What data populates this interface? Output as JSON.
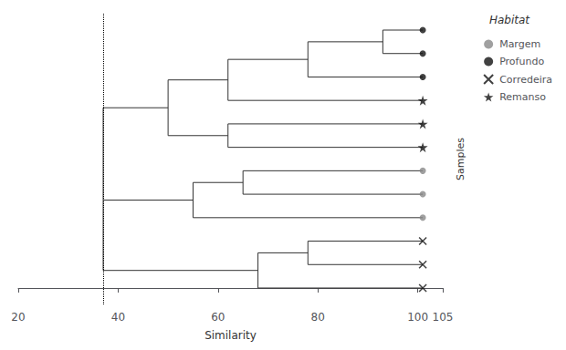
{
  "chart_data": {
    "type": "dendrogram",
    "xlabel": "Similarity",
    "ylabel": "Samples",
    "xlim": [
      20,
      105
    ],
    "xticks": [
      20,
      40,
      60,
      80,
      100
    ],
    "ylim": [
      -0.7,
      11.7
    ],
    "tick_labels": "x",
    "grid": false,
    "color": "#333333",
    "cut_line": {
      "x": 37,
      "color": "#000000",
      "line_style": "dotted"
    },
    "legend": "right",
    "legend_title": "Habitat",
    "series": [
      {
        "name": "Margem",
        "marker": "circle",
        "color": "#888888"
      },
      {
        "name": "Profundo",
        "marker": "circle",
        "color": "#111111"
      },
      {
        "name": "Corredeira",
        "marker": "x",
        "color": "#111111"
      },
      {
        "name": "Remanso",
        "marker": "star",
        "color": "#111111"
      }
    ],
    "leaves": [
      {
        "x": 101,
        "y": 11,
        "marker": "circle",
        "color": "#111111"
      },
      {
        "x": 101,
        "y": 10,
        "marker": "circle",
        "color": "#111111"
      },
      {
        "x": 101,
        "y": 9,
        "marker": "circle",
        "color": "#111111"
      },
      {
        "x": 101,
        "y": 8,
        "marker": "star",
        "color": "#111111"
      },
      {
        "x": 101,
        "y": 7,
        "marker": "star",
        "color": "#111111"
      },
      {
        "x": 101,
        "y": 6,
        "marker": "star",
        "color": "#111111"
      },
      {
        "x": 101,
        "y": 5,
        "marker": "circle",
        "color": "#888888"
      },
      {
        "x": 101,
        "y": 4,
        "marker": "circle",
        "color": "#888888"
      },
      {
        "x": 101,
        "y": 3,
        "marker": "circle",
        "color": "#888888"
      },
      {
        "x": 101,
        "y": 2,
        "marker": "x",
        "color": "#111111"
      },
      {
        "x": 101,
        "y": 1,
        "marker": "x",
        "color": "#111111"
      },
      {
        "x": 101,
        "y": 0,
        "marker": "x",
        "color": "#111111"
      }
    ],
    "hlines": [
      [
        93,
        101,
        11
      ],
      [
        93,
        101,
        10
      ],
      [
        78,
        93,
        10.5
      ],
      [
        78,
        101,
        9
      ],
      [
        62,
        78,
        9.75
      ],
      [
        62,
        101,
        8
      ],
      [
        50,
        62,
        8.875
      ],
      [
        62,
        101,
        7
      ],
      [
        62,
        101,
        6
      ],
      [
        50,
        62,
        6.5
      ],
      [
        37,
        50,
        7.6875
      ],
      [
        65,
        101,
        5
      ],
      [
        65,
        101,
        4
      ],
      [
        55,
        65,
        4.5
      ],
      [
        55,
        101,
        3
      ],
      [
        37,
        55,
        3.75
      ],
      [
        78,
        101,
        2
      ],
      [
        78,
        101,
        1
      ],
      [
        68,
        78,
        1.5
      ],
      [
        68,
        101,
        0
      ],
      [
        37,
        68,
        0.75
      ]
    ],
    "vlines": [
      [
        93,
        10,
        11
      ],
      [
        78,
        9,
        10.5
      ],
      [
        62,
        8,
        9.75
      ],
      [
        50,
        6.5,
        8.875
      ],
      [
        62,
        6,
        7
      ],
      [
        37,
        3.75,
        7.6875
      ],
      [
        65,
        4,
        5
      ],
      [
        55,
        3,
        4.5
      ],
      [
        78,
        1,
        2
      ],
      [
        68,
        0,
        1.5
      ],
      [
        37,
        0.75,
        3.75
      ]
    ]
  }
}
